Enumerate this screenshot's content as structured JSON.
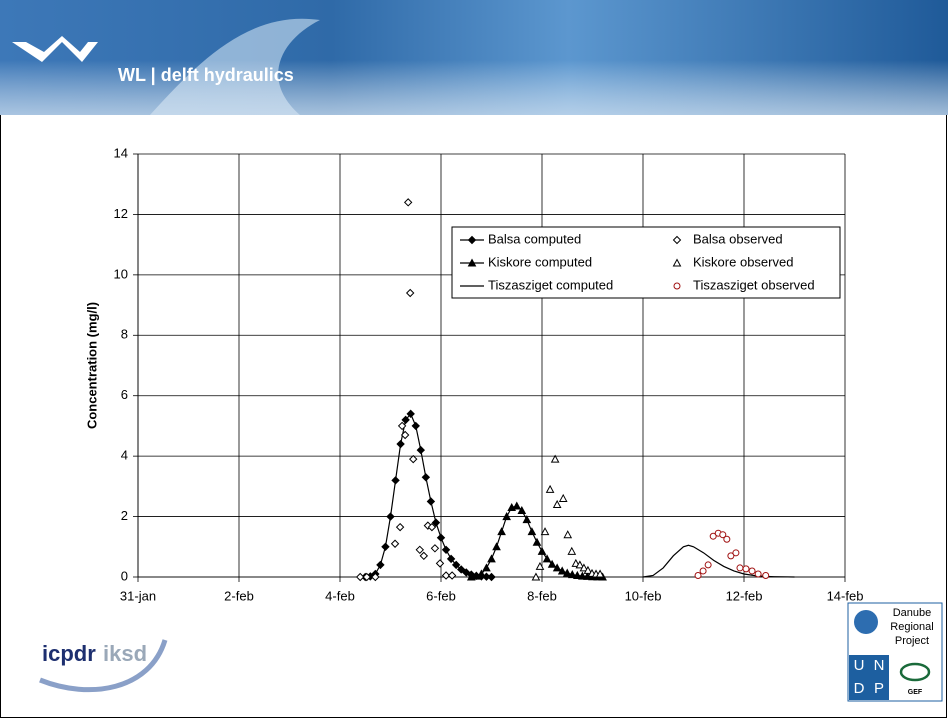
{
  "header": {
    "brand": "WL | delft hydraulics"
  },
  "logos": {
    "left": [
      "icpdr",
      "iksd"
    ],
    "right": [
      "Danube",
      "Regional",
      "Project",
      "U",
      "N",
      "D",
      "P",
      "GEF"
    ]
  },
  "chart_data": {
    "type": "line",
    "ylabel": "Concentration (mg/l)",
    "xlim": [
      0,
      14
    ],
    "xticks": [
      {
        "value": 0,
        "label": "31-jan"
      },
      {
        "value": 2,
        "label": "2-feb"
      },
      {
        "value": 4,
        "label": "4-feb"
      },
      {
        "value": 6,
        "label": "6-feb"
      },
      {
        "value": 8,
        "label": "8-feb"
      },
      {
        "value": 10,
        "label": "10-feb"
      },
      {
        "value": 12,
        "label": "12-feb"
      },
      {
        "value": 14,
        "label": "14-feb"
      }
    ],
    "ylim": [
      0,
      14
    ],
    "yticks": [
      0,
      2,
      4,
      6,
      8,
      10,
      12,
      14
    ],
    "grid": true,
    "legend": "upper right",
    "series": [
      {
        "name": "Balsa computed",
        "color": "#000000",
        "line": true,
        "marker": "diamond",
        "filled": true,
        "x": [
          4.5,
          4.6,
          4.7,
          4.8,
          4.9,
          5.0,
          5.1,
          5.2,
          5.3,
          5.4,
          5.5,
          5.6,
          5.7,
          5.8,
          5.9,
          6.0,
          6.1,
          6.2,
          6.3,
          6.4,
          6.5,
          6.6,
          6.7,
          6.8,
          6.9,
          7.0
        ],
        "values": [
          0,
          0.02,
          0.1,
          0.4,
          1.0,
          2.0,
          3.2,
          4.4,
          5.2,
          5.4,
          5.0,
          4.2,
          3.3,
          2.5,
          1.8,
          1.3,
          0.9,
          0.6,
          0.4,
          0.25,
          0.15,
          0.08,
          0.04,
          0.02,
          0.01,
          0
        ]
      },
      {
        "name": "Kiskore computed",
        "color": "#000000",
        "line": true,
        "marker": "triangle",
        "filled": true,
        "x": [
          6.6,
          6.7,
          6.8,
          6.9,
          7.0,
          7.1,
          7.2,
          7.3,
          7.4,
          7.5,
          7.6,
          7.7,
          7.8,
          7.9,
          8.0,
          8.1,
          8.2,
          8.3,
          8.4,
          8.5,
          8.6,
          8.7,
          8.8,
          8.9,
          9.0,
          9.1,
          9.2
        ],
        "values": [
          0,
          0.03,
          0.1,
          0.3,
          0.6,
          1.0,
          1.5,
          2.0,
          2.3,
          2.35,
          2.2,
          1.9,
          1.5,
          1.15,
          0.85,
          0.6,
          0.42,
          0.3,
          0.2,
          0.13,
          0.08,
          0.05,
          0.03,
          0.02,
          0.01,
          0.005,
          0
        ]
      },
      {
        "name": "Tiszasziget computed",
        "color": "#000000",
        "line": true,
        "marker": "none",
        "filled": false,
        "x": [
          10.0,
          10.2,
          10.4,
          10.6,
          10.8,
          10.9,
          11.0,
          11.2,
          11.4,
          11.6,
          11.8,
          12.0,
          12.2,
          12.4,
          12.6,
          13.0
        ],
        "values": [
          0,
          0.05,
          0.3,
          0.7,
          1.0,
          1.05,
          1.0,
          0.8,
          0.55,
          0.35,
          0.2,
          0.1,
          0.05,
          0.02,
          0.01,
          0
        ]
      },
      {
        "name": "Balsa observed",
        "color": "#000000",
        "line": false,
        "marker": "diamond",
        "filled": false,
        "x": [
          4.4,
          4.53,
          4.7,
          5.09,
          5.19,
          5.23,
          5.29,
          5.35,
          5.39,
          5.45,
          5.58,
          5.66,
          5.74,
          5.82,
          5.88,
          5.98,
          6.1,
          6.22
        ],
        "values": [
          0,
          0,
          0,
          1.1,
          1.65,
          5.0,
          4.7,
          12.4,
          9.4,
          3.9,
          0.9,
          0.7,
          1.7,
          1.65,
          0.95,
          0.45,
          0.05,
          0.05
        ]
      },
      {
        "name": "Kiskore observed",
        "color": "#000000",
        "line": false,
        "marker": "triangle",
        "filled": false,
        "x": [
          7.88,
          7.96,
          8.06,
          8.16,
          8.26,
          8.3,
          8.42,
          8.51,
          8.59,
          8.67,
          8.75,
          8.83,
          8.91,
          8.99,
          9.07,
          9.15
        ],
        "values": [
          0,
          0.35,
          1.5,
          2.9,
          3.9,
          2.4,
          2.6,
          1.4,
          0.85,
          0.45,
          0.4,
          0.3,
          0.22,
          0.12,
          0.1,
          0.1
        ]
      },
      {
        "name": "Tiszasziget observed",
        "color": "#a01010",
        "line": false,
        "marker": "circle",
        "filled": false,
        "x": [
          11.09,
          11.19,
          11.29,
          11.39,
          11.49,
          11.58,
          11.66,
          11.74,
          11.84,
          11.92,
          12.04,
          12.16,
          12.28,
          12.43
        ],
        "values": [
          0.05,
          0.2,
          0.4,
          1.35,
          1.45,
          1.4,
          1.25,
          0.7,
          0.8,
          0.3,
          0.27,
          0.2,
          0.1,
          0.05
        ]
      }
    ]
  }
}
